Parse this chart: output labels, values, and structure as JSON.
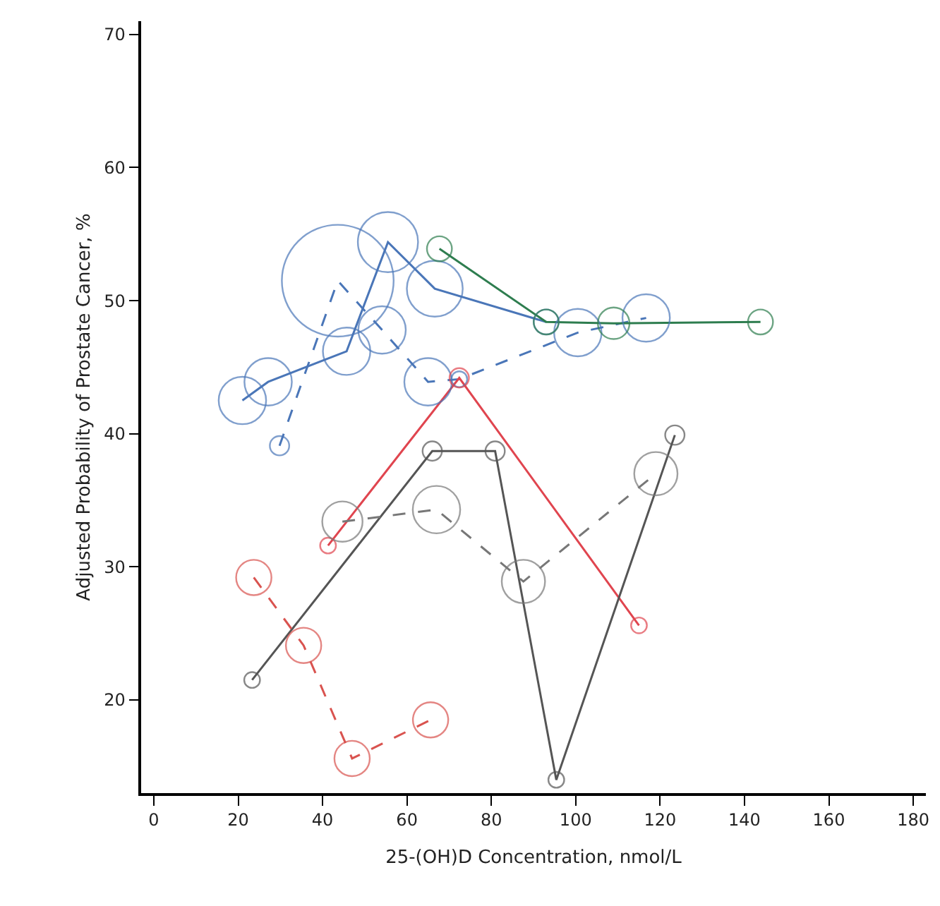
{
  "chart_data": {
    "type": "bubble",
    "xlabel": "25-(OH)D Concentration, nmol/L",
    "ylabel": "Adjusted Probability of Prostate Cancer, %",
    "xlim": [
      -3,
      183
    ],
    "xticks": [
      0,
      20,
      40,
      60,
      80,
      100,
      120,
      140,
      160,
      180
    ],
    "ylim": [
      13,
      71
    ],
    "yticks": [
      20,
      30,
      40,
      50,
      60,
      70
    ],
    "grid": false,
    "marker": "circle",
    "series": [
      {
        "type": "line",
        "marker": "none",
        "color": "#4a76b8",
        "line_style": "solid",
        "x": [
          21,
          27.1,
          45.7,
          55.5,
          66.6,
          93
        ],
        "values": [
          42.5,
          43.9,
          46.2,
          54.4,
          50.9,
          48.4
        ]
      },
      {
        "type": "line",
        "marker": "none",
        "color": "#4a76b8",
        "line_style": "dashed",
        "x": [
          29.8,
          43.6,
          54.1,
          65,
          72.4,
          100.5,
          116.7
        ],
        "values": [
          39.1,
          51.5,
          47.8,
          43.9,
          44.1,
          47.6,
          48.7
        ]
      },
      {
        "type": "line",
        "marker": "none",
        "color": "#2e7d4f",
        "line_style": "solid",
        "x": [
          67.7,
          93,
          109,
          143.8
        ],
        "values": [
          53.9,
          48.4,
          48.3,
          48.4
        ]
      },
      {
        "type": "line",
        "marker": "none",
        "color": "#e0454f",
        "line_style": "solid",
        "x": [
          41.3,
          72.4,
          115
        ],
        "values": [
          31.6,
          44.2,
          25.6
        ]
      },
      {
        "type": "line",
        "marker": "none",
        "color": "#555555",
        "line_style": "solid",
        "x": [
          23.3,
          66,
          80.9,
          95.4,
          123.5
        ],
        "values": [
          21.5,
          38.7,
          38.7,
          14,
          39.9
        ]
      },
      {
        "type": "line",
        "marker": "none",
        "color": "#777777",
        "line_style": "dashed",
        "x": [
          44.7,
          67,
          87.6,
          119
        ],
        "values": [
          33.4,
          34.3,
          28.9,
          37
        ]
      },
      {
        "type": "line",
        "marker": "none",
        "color": "#d9534f",
        "line_style": "dashed",
        "x": [
          23.7,
          35.5,
          47,
          65.6
        ],
        "values": [
          29.2,
          24.1,
          15.6,
          18.5
        ]
      },
      {
        "color": "#4a76b8",
        "x": [
          21,
          27.1,
          45.7,
          55.5,
          66.6,
          93
        ],
        "values": [
          42.5,
          43.9,
          46.2,
          54.4,
          50.9,
          48.4
        ],
        "sizes": [
          0.18,
          0.18,
          0.18,
          0.29,
          0.25,
          0.05
        ]
      },
      {
        "color": "#4a76b8",
        "x": [
          29.8,
          43.6,
          54.1,
          65,
          72.4,
          100.5,
          116.7
        ],
        "values": [
          39.1,
          51.5,
          47.8,
          43.9,
          44.1,
          47.6,
          48.7
        ],
        "sizes": [
          0.03,
          1,
          0.18,
          0.18,
          0.02,
          0.18,
          0.18
        ]
      },
      {
        "color": "#2e7d4f",
        "x": [
          67.7,
          93,
          109,
          143.8
        ],
        "values": [
          53.9,
          48.4,
          48.3,
          48.4
        ],
        "sizes": [
          0.05,
          0.05,
          0.08,
          0.05
        ]
      },
      {
        "color": "#e0454f",
        "x": [
          41.3,
          72.4,
          115
        ],
        "values": [
          31.6,
          44.2,
          25.6
        ],
        "sizes": [
          0.02,
          0.03,
          0.02
        ]
      },
      {
        "color": "#555555",
        "x": [
          23.3,
          66,
          80.9,
          95.4,
          123.5
        ],
        "values": [
          21.5,
          38.7,
          38.7,
          14,
          39.9
        ],
        "sizes": [
          0.02,
          0.03,
          0.03,
          0.02,
          0.03
        ]
      },
      {
        "color": "#777777",
        "x": [
          44.7,
          67,
          87.6,
          119
        ],
        "values": [
          33.4,
          34.3,
          28.9,
          37
        ],
        "sizes": [
          0.13,
          0.18,
          0.15,
          0.15
        ]
      },
      {
        "color": "#d9534f",
        "x": [
          23.7,
          35.5,
          47,
          65.6
        ],
        "values": [
          29.2,
          24.1,
          15.6,
          18.5
        ],
        "sizes": [
          0.1,
          0.1,
          0.1,
          0.1
        ]
      }
    ]
  }
}
